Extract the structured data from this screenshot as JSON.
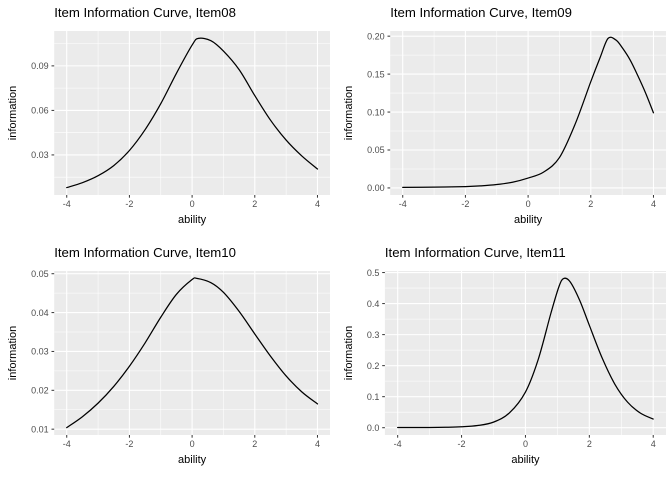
{
  "page": {
    "background": "#FFFFFF"
  },
  "theme": {
    "panel_bg": "#EBEBEB",
    "grid_color": "#FFFFFF",
    "curve_color": "#000000",
    "tick_text_color": "#4D4D4D",
    "tick_mark_color": "#333333",
    "title_color": "#000000"
  },
  "chart_data": [
    {
      "type": "line",
      "title": "Item Information Curve, Item08",
      "xlabel": "ability",
      "ylabel": "information",
      "xlim": [
        -4.4,
        4.4
      ],
      "ylim": [
        0.003,
        0.1135
      ],
      "x_ticks": {
        "values": [
          -4,
          -2,
          0,
          2,
          4
        ],
        "labels": [
          "-4",
          "-2",
          "0",
          "2",
          "4"
        ]
      },
      "x_minor": [
        -3,
        -1,
        1,
        3
      ],
      "y_ticks": {
        "values": [
          0.03,
          0.06,
          0.09
        ],
        "labels": [
          "0.03",
          "0.06",
          "0.09"
        ]
      },
      "y_minor": [
        0.015,
        0.045,
        0.075,
        0.105
      ],
      "grid": true,
      "legend": "none",
      "points": [
        [
          -4,
          0.008
        ],
        [
          -3.5,
          0.0113
        ],
        [
          -3,
          0.016
        ],
        [
          -2.5,
          0.0228
        ],
        [
          -2,
          0.033
        ],
        [
          -1.5,
          0.047
        ],
        [
          -1,
          0.0645
        ],
        [
          -0.5,
          0.085
        ],
        [
          0,
          0.104
        ],
        [
          0.2,
          0.1085
        ],
        [
          0.6,
          0.107
        ],
        [
          1,
          0.1
        ],
        [
          1.5,
          0.0875
        ],
        [
          2,
          0.07
        ],
        [
          2.5,
          0.0535
        ],
        [
          3,
          0.04
        ],
        [
          3.5,
          0.0293
        ],
        [
          4,
          0.0205
        ]
      ]
    },
    {
      "type": "line",
      "title": "Item Information Curve, Item09",
      "xlabel": "ability",
      "ylabel": "information",
      "xlim": [
        -4.4,
        4.4
      ],
      "ylim": [
        -0.0093,
        0.2068
      ],
      "x_ticks": {
        "values": [
          -4,
          -2,
          0,
          2,
          4
        ],
        "labels": [
          "-4",
          "-2",
          "0",
          "2",
          "4"
        ]
      },
      "x_minor": [
        -3,
        -1,
        1,
        3
      ],
      "y_ticks": {
        "values": [
          0.0,
          0.05,
          0.1,
          0.15,
          0.2
        ],
        "labels": [
          "0.00",
          "0.05",
          "0.10",
          "0.15",
          "0.20"
        ]
      },
      "y_minor": [
        0.025,
        0.075,
        0.125,
        0.175
      ],
      "grid": true,
      "legend": "none",
      "points": [
        [
          -4,
          0.0008
        ],
        [
          -3,
          0.001
        ],
        [
          -2,
          0.0018
        ],
        [
          -1.5,
          0.0028
        ],
        [
          -1,
          0.0045
        ],
        [
          -0.5,
          0.0075
        ],
        [
          0,
          0.013
        ],
        [
          0.5,
          0.021
        ],
        [
          1,
          0.04
        ],
        [
          1.5,
          0.084
        ],
        [
          2,
          0.14
        ],
        [
          2.3,
          0.172
        ],
        [
          2.55,
          0.197
        ],
        [
          2.8,
          0.195
        ],
        [
          3,
          0.185
        ],
        [
          3.25,
          0.169
        ],
        [
          3.5,
          0.148
        ],
        [
          3.75,
          0.125
        ],
        [
          4,
          0.099
        ]
      ]
    },
    {
      "type": "line",
      "title": "Item Information Curve, Item10",
      "xlabel": "ability",
      "ylabel": "information",
      "xlim": [
        -4.4,
        4.4
      ],
      "ylim": [
        0.0085,
        0.0507
      ],
      "x_ticks": {
        "values": [
          -4,
          -2,
          0,
          2,
          4
        ],
        "labels": [
          "-4",
          "-2",
          "0",
          "2",
          "4"
        ]
      },
      "x_minor": [
        -3,
        -1,
        1,
        3
      ],
      "y_ticks": {
        "values": [
          0.01,
          0.02,
          0.03,
          0.04,
          0.05
        ],
        "labels": [
          "0.01",
          "0.02",
          "0.03",
          "0.04",
          "0.05"
        ]
      },
      "y_minor": [
        0.015,
        0.025,
        0.035,
        0.045
      ],
      "grid": true,
      "legend": "none",
      "points": [
        [
          -4,
          0.0104
        ],
        [
          -3.5,
          0.0132
        ],
        [
          -3,
          0.0167
        ],
        [
          -2.5,
          0.021
        ],
        [
          -2,
          0.0262
        ],
        [
          -1.5,
          0.0322
        ],
        [
          -1,
          0.0388
        ],
        [
          -0.5,
          0.0447
        ],
        [
          0,
          0.0485
        ],
        [
          0.15,
          0.0488
        ],
        [
          0.6,
          0.0477
        ],
        [
          1,
          0.0452
        ],
        [
          1.5,
          0.0403
        ],
        [
          2,
          0.0345
        ],
        [
          2.5,
          0.0288
        ],
        [
          3,
          0.0237
        ],
        [
          3.5,
          0.0196
        ],
        [
          4,
          0.0165
        ]
      ]
    },
    {
      "type": "line",
      "title": "Item Information Curve, Item11",
      "xlabel": "ability",
      "ylabel": "information",
      "xlim": [
        -4.4,
        4.4
      ],
      "ylim": [
        -0.0235,
        0.505
      ],
      "x_ticks": {
        "values": [
          -4,
          -2,
          0,
          2,
          4
        ],
        "labels": [
          "-4",
          "-2",
          "0",
          "2",
          "4"
        ]
      },
      "x_minor": [
        -3,
        -1,
        1,
        3
      ],
      "y_ticks": {
        "values": [
          0.0,
          0.1,
          0.2,
          0.3,
          0.4,
          0.5
        ],
        "labels": [
          "0.0",
          "0.1",
          "0.2",
          "0.3",
          "0.4",
          "0.5"
        ]
      },
      "y_minor": [
        0.05,
        0.15,
        0.25,
        0.35,
        0.45
      ],
      "grid": true,
      "legend": "none",
      "points": [
        [
          -4,
          0.0005
        ],
        [
          -3,
          0.0008
        ],
        [
          -2.5,
          0.0015
        ],
        [
          -2,
          0.003
        ],
        [
          -1.5,
          0.007
        ],
        [
          -1,
          0.018
        ],
        [
          -0.5,
          0.048
        ],
        [
          0,
          0.115
        ],
        [
          0.4,
          0.22
        ],
        [
          0.8,
          0.37
        ],
        [
          1.05,
          0.455
        ],
        [
          1.2,
          0.481
        ],
        [
          1.4,
          0.47
        ],
        [
          1.7,
          0.41
        ],
        [
          2,
          0.33
        ],
        [
          2.4,
          0.225
        ],
        [
          2.8,
          0.14
        ],
        [
          3.2,
          0.082
        ],
        [
          3.6,
          0.047
        ],
        [
          4,
          0.028
        ]
      ]
    }
  ]
}
